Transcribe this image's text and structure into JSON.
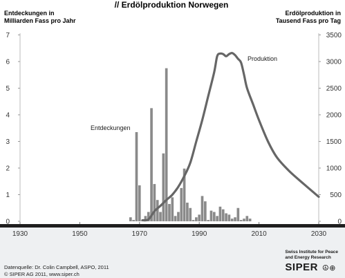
{
  "chart_data": {
    "type": "bar",
    "title": "// Erdölproduktion Norwegen",
    "left_axis_label": [
      "Entdeckungen in",
      "Milliarden Fass pro Jahr"
    ],
    "right_axis_label": [
      "Erdölproduktion in",
      "Tausend Fass pro Tag"
    ],
    "x_ticks": [
      "1930",
      "1950",
      "1970",
      "1990",
      "2010",
      "2030"
    ],
    "xlim": [
      1930,
      2030
    ],
    "y_left_ticks": [
      "0",
      "1",
      "2",
      "3",
      "4",
      "5",
      "6",
      "7"
    ],
    "y_left_lim": [
      0,
      7
    ],
    "y_right_ticks": [
      "0",
      "500",
      "1000",
      "1500",
      "2000",
      "2500",
      "3000",
      "3500"
    ],
    "y_right_lim": [
      0,
      3500
    ],
    "grid": false,
    "series": [
      {
        "name": "Entdeckungen",
        "axis": "left",
        "type": "bar",
        "color": "#8a8a8a",
        "x": [
          1967,
          1968,
          1969,
          1970,
          1971,
          1972,
          1973,
          1974,
          1975,
          1976,
          1977,
          1978,
          1979,
          1980,
          1981,
          1982,
          1983,
          1984,
          1985,
          1986,
          1987,
          1988,
          1989,
          1990,
          1991,
          1992,
          1993,
          1994,
          1995,
          1996,
          1997,
          1998,
          1999,
          2000,
          2001,
          2002,
          2003,
          2004,
          2005,
          2006,
          2007
        ],
        "values": [
          0.15,
          0.05,
          3.35,
          1.35,
          0.05,
          0.2,
          0.35,
          4.25,
          1.4,
          0.8,
          0.35,
          2.55,
          5.75,
          0.65,
          0.9,
          0.2,
          0.35,
          1.25,
          1.98,
          0.7,
          0.5,
          0.05,
          0.15,
          0.25,
          0.95,
          0.75,
          0.05,
          0.4,
          0.35,
          0.2,
          0.55,
          0.45,
          0.3,
          0.25,
          0.1,
          0.15,
          0.5,
          0.05,
          0.1,
          0.2,
          0.1
        ]
      },
      {
        "name": "Produktion",
        "axis": "right",
        "type": "line",
        "color": "#666666",
        "x": [
          1971,
          1973,
          1975,
          1977,
          1979,
          1981,
          1983,
          1985,
          1987,
          1989,
          1991,
          1993,
          1995,
          1996,
          1997,
          1998,
          1999,
          2000,
          2001,
          2002,
          2003,
          2004,
          2005,
          2006,
          2008,
          2010,
          2013,
          2016,
          2020,
          2025,
          2030
        ],
        "values": [
          20,
          35,
          190,
          290,
          400,
          500,
          650,
          850,
          1100,
          1500,
          1900,
          2350,
          2800,
          3100,
          3150,
          3140,
          3100,
          3140,
          3160,
          3120,
          3050,
          2980,
          2750,
          2500,
          2200,
          1900,
          1500,
          1200,
          950,
          700,
          460
        ]
      }
    ],
    "annotations": {
      "discoveries": "Entdeckungen",
      "production": "Produktion"
    }
  },
  "footer": {
    "source": "Datenquelle: Dr. Colin Campbell, ASPO, 2011",
    "copyright": "© SIPER AG 2011, www.siper.ch"
  },
  "brand": {
    "tagline_1": "Swiss Institute for Peace",
    "tagline_2": "and Energy Research",
    "logo": "SIPER",
    "logo_symbols": "☮⊕"
  },
  "colors": {
    "bars": "#8a8a8a",
    "line": "#666666",
    "footer_band": "#eef0f2"
  }
}
